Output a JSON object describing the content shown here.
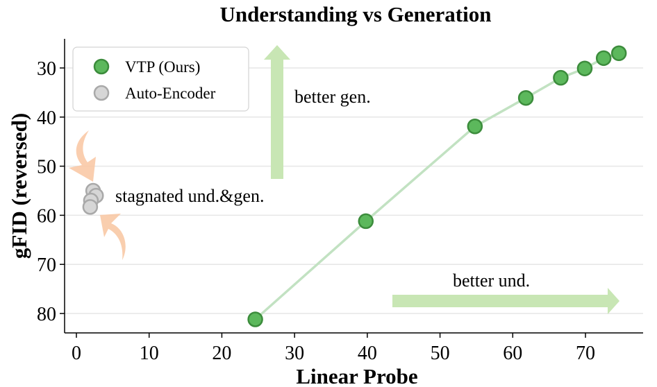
{
  "chart_data": {
    "type": "scatter",
    "title": "Understanding vs Generation",
    "xlabel": "Linear Probe",
    "ylabel": "gFID (reversed)",
    "xlim": [
      -1,
      76
    ],
    "ylim": [
      84.0,
      25.5
    ],
    "y_reversed": true,
    "xticks": [
      0,
      10,
      20,
      30,
      40,
      50,
      60,
      70
    ],
    "yticks": [
      30,
      40,
      50,
      60,
      70,
      80
    ],
    "grid": "horizontal",
    "legend_position": "top-left",
    "series": [
      {
        "name": "VTP (Ours)",
        "color": "#5cb85c",
        "edge_color": "#3c8c3c",
        "line_color": "#c2e2c2",
        "connected": true,
        "x": [
          24.6,
          39.8,
          54.8,
          61.8,
          66.6,
          69.9,
          72.5,
          74.6
        ],
        "y": [
          81.2,
          61.2,
          41.9,
          36.1,
          32.0,
          30.1,
          28.0,
          27.0
        ]
      },
      {
        "name": "Auto-Encoder",
        "color": "#d6d6d6",
        "edge_color": "#a9a9a9",
        "connected": false,
        "x": [
          2.3,
          2.7,
          2.0,
          1.9
        ],
        "y": [
          55.0,
          56.0,
          57.0,
          58.3
        ]
      }
    ],
    "annotations": [
      {
        "text": "better gen.",
        "arrow": "up",
        "color": "#c8e6b4"
      },
      {
        "text": "better und.",
        "arrow": "right",
        "color": "#c8e6b4"
      },
      {
        "text": "stagnated und.&gen.",
        "arrow": "curved",
        "color": "#f9c9a6"
      }
    ]
  }
}
